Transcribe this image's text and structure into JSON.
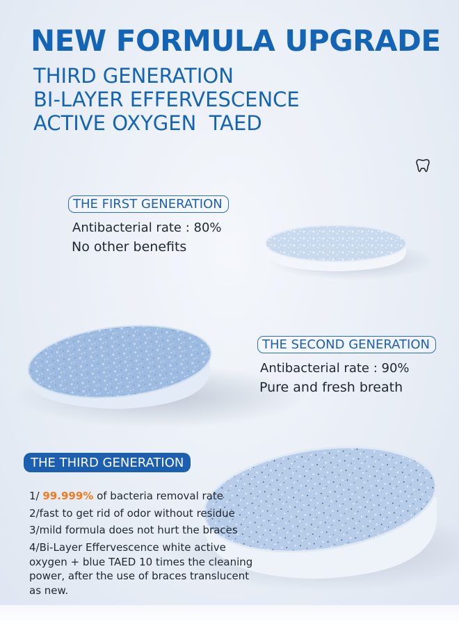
{
  "headline": "NEW FORMULA UPGRADE",
  "subtitle_lines": [
    "THIRD GENERATION",
    "BI-LAYER EFFERVESCENCE",
    "ACTIVE OXYGEN  TAED"
  ],
  "icons": {
    "tooth": "tooth-icon"
  },
  "colors": {
    "brand_blue": "#1364b5",
    "highlight_orange": "#f07a1e"
  },
  "first": {
    "label": "THE FIRST GENERATION",
    "rate": "Antibacterial rate : 80%",
    "benefit": "No other benefits"
  },
  "second": {
    "label": "THE SECOND GENERATION",
    "rate": "Antibacterial rate : 90%",
    "benefit": "Pure and fresh breath"
  },
  "third": {
    "label": "THE THIRD GENERATION",
    "item1_prefix": "1/ ",
    "item1_value": "99.999%",
    "item1_suffix": " of bacteria removal rate",
    "item2": "2/fast to get rid of odor without residue",
    "item3": "3/mild formula does not hurt the braces",
    "item4": "4/Bi-Layer Effervescence white active oxygen + blue TAED 10 times the cleaning power, after the use of braces translucent as new."
  }
}
